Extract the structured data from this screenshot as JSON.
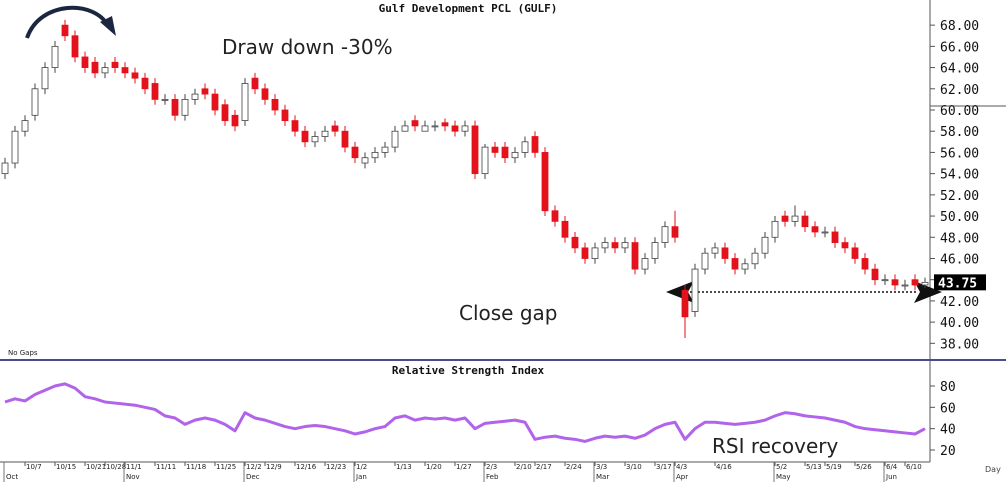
{
  "chart_data": [
    {
      "type": "candlestick",
      "title": "Gulf Development PCL (GULF)",
      "footnote": "No Gaps",
      "categories": [
        null,
        null,
        "10/7",
        null,
        null,
        "10/15",
        null,
        null,
        "10/21",
        null,
        "10/28",
        null,
        "11/1",
        null,
        null,
        "11/11",
        null,
        null,
        "11/18",
        null,
        null,
        "11/25",
        null,
        null,
        "12/2",
        null,
        "12/9",
        null,
        null,
        "12/16",
        null,
        null,
        "12/23",
        null,
        null,
        "1/2",
        null,
        null,
        null,
        "1/13",
        null,
        null,
        "1/20",
        null,
        null,
        "1/27",
        null,
        null,
        "2/3",
        null,
        null,
        "2/10",
        null,
        "2/17",
        null,
        null,
        "2/24",
        null,
        null,
        "3/3",
        null,
        null,
        "3/10",
        null,
        null,
        "3/17",
        null,
        "4/3",
        null,
        null,
        null,
        "4/16",
        null,
        null,
        null,
        null,
        null,
        "5/2",
        null,
        null,
        "5/13",
        null,
        "5/19",
        null,
        null,
        "5/26",
        null,
        null,
        "6/4",
        null,
        "6/10",
        null,
        null
      ],
      "month_labels": [
        "Oct",
        null,
        null,
        null,
        null,
        null,
        null,
        null,
        null,
        null,
        null,
        null,
        "Nov",
        null,
        null,
        null,
        null,
        null,
        null,
        null,
        null,
        null,
        null,
        null,
        "Dec",
        null,
        null,
        null,
        null,
        null,
        null,
        null,
        null,
        null,
        null,
        "Jan",
        null,
        null,
        null,
        null,
        null,
        null,
        null,
        null,
        null,
        null,
        null,
        null,
        "Feb",
        null,
        null,
        null,
        null,
        null,
        null,
        null,
        null,
        null,
        null,
        "Mar",
        null,
        null,
        null,
        null,
        null,
        null,
        null,
        "Apr",
        null,
        null,
        null,
        null,
        null,
        null,
        null,
        null,
        null,
        "May",
        null,
        null,
        null,
        null,
        null,
        null,
        null,
        null,
        null,
        null,
        "Jun",
        null,
        null,
        null,
        null
      ],
      "open": [
        54,
        55,
        58,
        59.5,
        62,
        64,
        68,
        67,
        65,
        64.5,
        63.5,
        64.5,
        64,
        63.5,
        63,
        62.5,
        61,
        61,
        59.5,
        61,
        62,
        61.5,
        60.5,
        59.5,
        59,
        63,
        62,
        61,
        60,
        59,
        58,
        57,
        57.5,
        58.5,
        58,
        56.5,
        55,
        55.5,
        56,
        56.5,
        58,
        59,
        58,
        58.5,
        58.8,
        58.5,
        58,
        58.5,
        54,
        56.5,
        56.5,
        55.5,
        56,
        57.5,
        56,
        50.5,
        49.5,
        48,
        47,
        46,
        47,
        47.5,
        47,
        47.5,
        45,
        46,
        47.5,
        49,
        43,
        41,
        45,
        46.5,
        47,
        46,
        45,
        45.5,
        46.5,
        48,
        50,
        49.5,
        50,
        49,
        48.5,
        48.5,
        47.5,
        47,
        46,
        45,
        44,
        44,
        43.5,
        44,
        43.5
      ],
      "high": [
        55.5,
        58.5,
        59.5,
        62.5,
        64.5,
        66.5,
        68.5,
        67.5,
        65.5,
        65,
        64.5,
        65,
        64.5,
        64,
        63.5,
        63,
        61.5,
        61.5,
        61.5,
        62,
        62.5,
        62,
        61,
        60,
        63,
        63.5,
        62.5,
        61.5,
        60.5,
        59.5,
        58.5,
        58,
        58.5,
        59,
        58.5,
        57,
        56,
        56.5,
        57,
        58.5,
        59,
        59.5,
        59,
        59,
        59.2,
        59,
        59,
        59,
        56.8,
        57,
        57,
        56.5,
        57.5,
        58,
        56.5,
        51,
        50,
        48.5,
        47.5,
        47.5,
        48,
        48,
        48,
        48,
        46.5,
        48,
        49.5,
        50.5,
        43.5,
        45.5,
        47,
        47.5,
        47.5,
        46.5,
        46,
        47,
        48.5,
        50,
        50.5,
        51,
        50.5,
        49.5,
        49,
        49,
        48,
        47.5,
        46.5,
        45.5,
        44.5,
        44.5,
        44,
        44.5,
        44.2
      ],
      "low": [
        53.5,
        54.5,
        57.5,
        59,
        61.5,
        63.5,
        66.5,
        64.5,
        63.5,
        63,
        63,
        63.5,
        63,
        62.5,
        61.5,
        60.5,
        60.5,
        59,
        59,
        60.5,
        61,
        59.5,
        58.5,
        58,
        58.5,
        61.5,
        60.5,
        59.5,
        58.5,
        57.5,
        56.5,
        56.5,
        57,
        57.5,
        56,
        55,
        54.5,
        55,
        55.5,
        56,
        58,
        58,
        58,
        58,
        58,
        57.5,
        57.5,
        53.5,
        53.5,
        55.5,
        55,
        55,
        55.5,
        55.5,
        50,
        49,
        47.5,
        46.5,
        45.5,
        45.5,
        46.5,
        46.5,
        46.5,
        44.5,
        44.5,
        45.5,
        47,
        47.5,
        38.5,
        40.5,
        44.5,
        46,
        45.5,
        44.5,
        44.5,
        45,
        46,
        47.5,
        49,
        49,
        48.5,
        48,
        48,
        47,
        46.5,
        45.5,
        44.5,
        43.5,
        43.5,
        43,
        43,
        43,
        43.2
      ],
      "close": [
        55,
        58,
        59,
        62,
        64,
        66,
        67,
        65,
        64,
        63.5,
        64,
        64,
        63.5,
        63,
        62,
        61,
        61,
        59.5,
        61,
        61.5,
        61.5,
        60,
        59,
        58.5,
        62.5,
        62,
        61,
        60,
        59,
        58,
        57,
        57.5,
        58,
        58,
        56.5,
        55.5,
        55.5,
        56,
        56.5,
        58,
        58.5,
        58.5,
        58.5,
        58.5,
        58.5,
        58,
        58.5,
        54,
        56.5,
        56,
        55.5,
        56,
        57,
        56,
        50.5,
        49.5,
        48,
        47,
        46,
        47,
        47.5,
        47,
        47.5,
        45,
        46,
        47.5,
        49,
        48,
        40.5,
        45,
        46.5,
        47,
        46,
        45,
        45.5,
        46.5,
        48,
        49.5,
        49.5,
        50,
        49,
        48.5,
        48.5,
        47.5,
        47,
        46,
        45,
        44,
        44,
        43.5,
        43.5,
        43.5,
        43.75
      ],
      "up_color": "#ffffff",
      "down_color": "#e3121b",
      "ylim": [
        36.9,
        69.9
      ],
      "yticks": [
        {
          "value": 38,
          "label": "38.00"
        },
        {
          "value": 40,
          "label": "40.00"
        },
        {
          "value": 42,
          "label": "42.00"
        },
        {
          "value": 44,
          "label": "44.00"
        },
        {
          "value": 46,
          "label": "46.00"
        },
        {
          "value": 48,
          "label": "48.00"
        },
        {
          "value": 50,
          "label": "50.00"
        },
        {
          "value": 52,
          "label": "52.00"
        },
        {
          "value": 54,
          "label": "54.00"
        },
        {
          "value": 56,
          "label": "56.00"
        },
        {
          "value": 58,
          "label": "58.00"
        },
        {
          "value": 60,
          "label": "60.00"
        },
        {
          "value": 62,
          "label": "62.00"
        },
        {
          "value": 64,
          "label": "64.00"
        },
        {
          "value": 66,
          "label": "66.00"
        },
        {
          "value": 68,
          "label": "68.00"
        }
      ],
      "annotations": [
        "Draw down -30%",
        "Close gap"
      ]
    },
    {
      "type": "line",
      "title": "Relative Strength Index",
      "xlabel": "Day",
      "color": "#b163ea",
      "values": [
        65,
        68,
        66,
        72,
        76,
        80,
        82,
        78,
        70,
        68,
        65,
        64,
        63,
        62,
        60,
        58,
        52,
        50,
        44,
        48,
        50,
        48,
        44,
        38,
        55,
        50,
        48,
        45,
        42,
        40,
        42,
        43,
        42,
        40,
        38,
        35,
        37,
        40,
        42,
        50,
        52,
        48,
        50,
        49,
        50,
        48,
        50,
        40,
        45,
        46,
        47,
        48,
        46,
        30,
        32,
        33,
        31,
        30,
        28,
        31,
        33,
        32,
        33,
        31,
        34,
        40,
        44,
        46,
        30,
        40,
        46,
        46,
        45,
        44,
        45,
        46,
        48,
        52,
        55,
        54,
        52,
        51,
        50,
        48,
        46,
        42,
        40,
        39,
        38,
        37,
        36,
        35,
        40
      ],
      "ylim": [
        8.75,
        87.5
      ],
      "yticks": [
        20,
        40,
        60,
        80
      ],
      "annotations": [
        "RSI recovery"
      ]
    }
  ]
}
